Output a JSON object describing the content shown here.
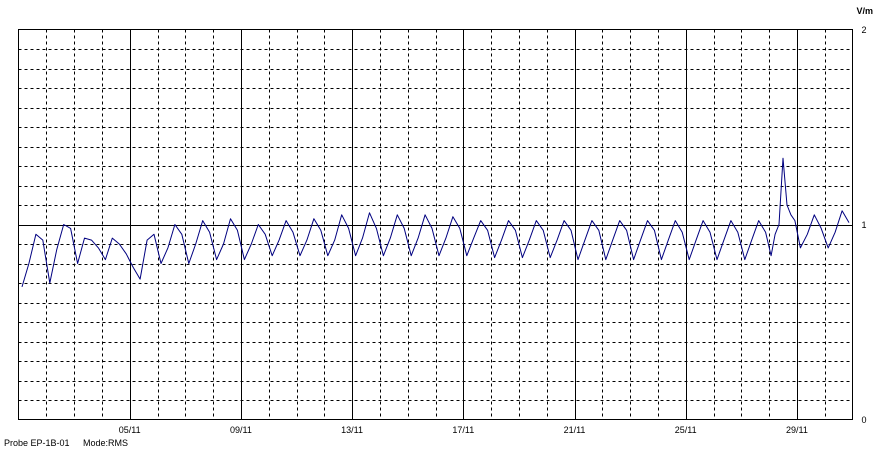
{
  "chart_data": {
    "type": "line",
    "title": "",
    "xlabel": "",
    "ylabel": "V/m",
    "ylim": [
      0,
      2
    ],
    "y_ticks": [
      "0",
      "1",
      "2"
    ],
    "y_axis_side": "right",
    "x_start_date": "2012-11-01",
    "x_end_date": "2012-12-01",
    "x_ticks": [
      {
        "date": "2012-11-05",
        "label": "05/11"
      },
      {
        "date": "2012-11-09",
        "label": "09/11"
      },
      {
        "date": "2012-11-13",
        "label": "13/11"
      },
      {
        "date": "2012-11-17",
        "label": "17/11"
      },
      {
        "date": "2012-11-21",
        "label": "21/11"
      },
      {
        "date": "2012-11-25",
        "label": "25/11"
      },
      {
        "date": "2012-11-29",
        "label": "29/11"
      }
    ],
    "grid": true,
    "legend": "none",
    "series": [
      {
        "color": "#000080",
        "x": [
          "2012-11-01",
          "2012-11-01",
          "2012-11-01",
          "2012-11-01",
          "2012-11-02",
          "2012-11-02",
          "2012-11-02",
          "2012-11-02",
          "2012-11-03",
          "2012-11-03",
          "2012-11-03",
          "2012-11-03",
          "2012-11-04",
          "2012-11-04",
          "2012-11-04",
          "2012-11-04",
          "2012-11-05",
          "2012-11-05",
          "2012-11-05",
          "2012-11-05",
          "2012-11-06",
          "2012-11-06",
          "2012-11-06",
          "2012-11-06",
          "2012-11-07",
          "2012-11-07",
          "2012-11-07",
          "2012-11-07",
          "2012-11-08",
          "2012-11-08",
          "2012-11-08",
          "2012-11-08",
          "2012-11-09",
          "2012-11-09",
          "2012-11-09",
          "2012-11-09",
          "2012-11-10",
          "2012-11-10",
          "2012-11-10",
          "2012-11-10",
          "2012-11-11",
          "2012-11-11",
          "2012-11-11",
          "2012-11-11",
          "2012-11-12",
          "2012-11-12",
          "2012-11-12",
          "2012-11-12",
          "2012-11-13",
          "2012-11-13",
          "2012-11-13",
          "2012-11-13",
          "2012-11-14",
          "2012-11-14",
          "2012-11-14",
          "2012-11-14",
          "2012-11-15",
          "2012-11-15",
          "2012-11-15",
          "2012-11-15",
          "2012-11-16",
          "2012-11-16",
          "2012-11-16",
          "2012-11-16",
          "2012-11-17",
          "2012-11-17",
          "2012-11-17",
          "2012-11-17",
          "2012-11-18",
          "2012-11-18",
          "2012-11-18",
          "2012-11-18",
          "2012-11-19",
          "2012-11-19",
          "2012-11-19",
          "2012-11-19",
          "2012-11-20",
          "2012-11-20",
          "2012-11-20",
          "2012-11-20",
          "2012-11-21",
          "2012-11-21",
          "2012-11-21",
          "2012-11-21",
          "2012-11-22",
          "2012-11-22",
          "2012-11-22",
          "2012-11-22",
          "2012-11-23",
          "2012-11-23",
          "2012-11-23",
          "2012-11-23",
          "2012-11-24",
          "2012-11-24",
          "2012-11-24",
          "2012-11-24",
          "2012-11-25",
          "2012-11-25",
          "2012-11-25",
          "2012-11-25",
          "2012-11-26",
          "2012-11-26",
          "2012-11-26",
          "2012-11-26",
          "2012-11-27",
          "2012-11-27",
          "2012-11-27",
          "2012-11-27",
          "2012-11-28",
          "2012-11-28",
          "2012-11-28",
          "2012-11-28",
          "2012-11-28",
          "2012-11-28",
          "2012-11-28",
          "2012-11-29",
          "2012-11-29",
          "2012-11-29",
          "2012-11-29",
          "2012-11-30",
          "2012-11-30",
          "2012-11-30",
          "2012-11-30"
        ],
        "y": [
          0.68,
          0.8,
          0.95,
          0.92,
          0.7,
          0.87,
          1.0,
          0.98,
          0.8,
          0.93,
          0.92,
          0.88,
          0.82,
          0.93,
          0.9,
          0.85,
          0.78,
          0.72,
          0.92,
          0.95,
          0.8,
          0.88,
          1.0,
          0.95,
          0.8,
          0.9,
          1.02,
          0.96,
          0.82,
          0.9,
          1.03,
          0.97,
          0.82,
          0.9,
          1.0,
          0.95,
          0.84,
          0.92,
          1.02,
          0.96,
          0.84,
          0.92,
          1.03,
          0.97,
          0.84,
          0.92,
          1.05,
          0.98,
          0.84,
          0.93,
          1.06,
          0.98,
          0.84,
          0.93,
          1.05,
          0.98,
          0.84,
          0.93,
          1.05,
          0.98,
          0.84,
          0.93,
          1.04,
          0.98,
          0.84,
          0.93,
          1.02,
          0.97,
          0.83,
          0.92,
          1.02,
          0.97,
          0.83,
          0.92,
          1.02,
          0.97,
          0.83,
          0.92,
          1.02,
          0.97,
          0.82,
          0.92,
          1.02,
          0.97,
          0.82,
          0.92,
          1.02,
          0.97,
          0.82,
          0.92,
          1.02,
          0.97,
          0.82,
          0.92,
          1.02,
          0.96,
          0.82,
          0.92,
          1.02,
          0.96,
          0.82,
          0.92,
          1.02,
          0.96,
          0.82,
          0.92,
          1.02,
          0.96,
          0.84,
          0.95,
          1.0,
          1.34,
          1.1,
          1.05,
          1.02,
          0.88,
          0.95,
          1.05,
          0.98,
          0.88,
          0.96,
          1.07,
          1.01
        ]
      }
    ]
  },
  "footer": {
    "probe": "Probe EP-1B-01",
    "mode": "Mode:RMS"
  }
}
